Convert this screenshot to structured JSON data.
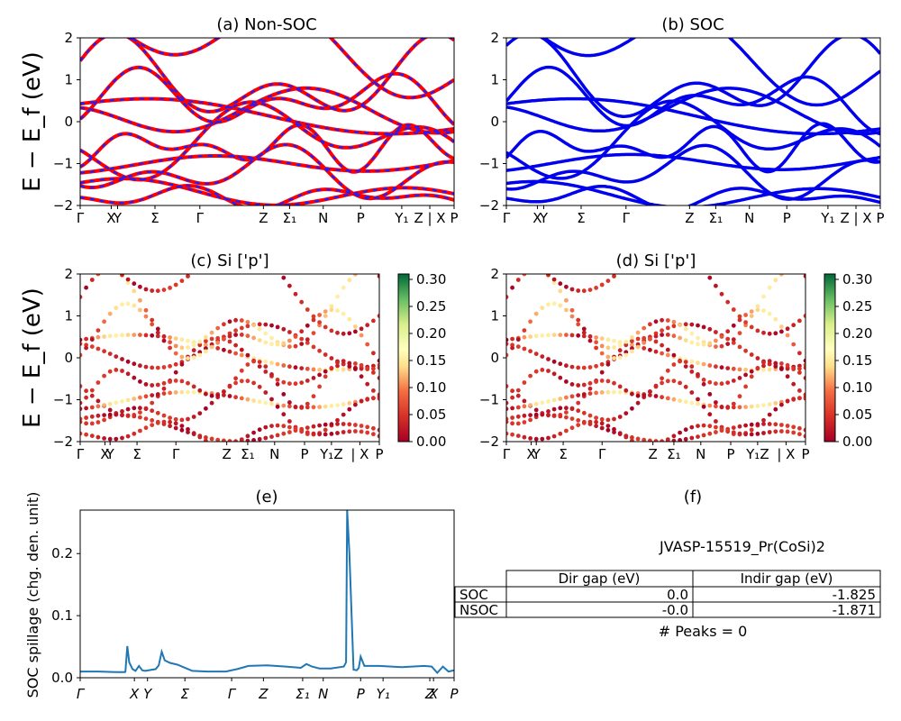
{
  "chart_data": [
    {
      "type": "line",
      "title": "(a) Non-SOC",
      "ylabel": "E − E_f (eV)",
      "ylim": [
        -2,
        2
      ],
      "yticks": [
        "−2",
        "−1",
        "0",
        "1",
        "2"
      ],
      "xtick_labels": [
        "Γ",
        "X",
        "Y",
        "Σ",
        "Γ",
        "Z",
        "Σ₁",
        "N",
        "P",
        "Y₁",
        "Z | X",
        "P"
      ],
      "xlim": [
        0,
        10
      ],
      "colors": {
        "line": "#ff0000",
        "dash": "#1f1fff"
      },
      "grid": false,
      "series_note_colors": [
        "red",
        "blue"
      ]
    },
    {
      "type": "line",
      "title": "(b) SOC",
      "ylim": [
        -2,
        2
      ],
      "yticks": [
        "−2",
        "−1",
        "0",
        "1",
        "2"
      ],
      "xtick_labels": [
        "Γ",
        "X",
        "Y",
        "Σ",
        "Γ",
        "Z",
        "Σ₁",
        "N",
        "P",
        "Y₁",
        "Z | X",
        "P"
      ],
      "colors": {
        "line": "#0000ee"
      },
      "grid": false
    },
    {
      "type": "scatter",
      "title": "(c)  Si ['p']",
      "ylabel": "E − E_f (eV)",
      "ylim": [
        -2,
        2
      ],
      "yticks": [
        "−2",
        "−1",
        "0",
        "1",
        "2"
      ],
      "xtick_labels": [
        "Γ",
        "X",
        "Y",
        "Σ",
        "Γ",
        "Z",
        "Σ₁",
        "N",
        "P",
        "Y₁Z",
        "| X",
        "P"
      ],
      "colorbar": {
        "min": 0.0,
        "max": 0.31,
        "ticks": [
          "0.00",
          "0.05",
          "0.10",
          "0.15",
          "0.20",
          "0.25",
          "0.30"
        ],
        "colormap": "RdYlGn"
      }
    },
    {
      "type": "scatter",
      "title": "(d) Si ['p']",
      "ylim": [
        -2,
        2
      ],
      "yticks": [
        "−2",
        "−1",
        "0",
        "1",
        "2"
      ],
      "xtick_labels": [
        "Γ",
        "X",
        "Y",
        "Σ",
        "Γ",
        "Z",
        "Σ₁",
        "N",
        "P",
        "Y₁Z",
        "| X",
        "P"
      ],
      "colorbar": {
        "min": 0.0,
        "max": 0.31,
        "ticks": [
          "0.00",
          "0.05",
          "0.10",
          "0.15",
          "0.20",
          "0.25",
          "0.30"
        ],
        "colormap": "RdYlGn"
      }
    },
    {
      "type": "line",
      "title": "(e)",
      "ylabel": "SOC spillage (chg. den. unit)",
      "ylim": [
        0,
        0.27
      ],
      "yticks": [
        "0.0",
        "0.1",
        "0.2"
      ],
      "xtick_labels": [
        "Γ",
        "X",
        "Y",
        "Σ",
        "Γ",
        "Z",
        "Σ₁",
        "N",
        "P",
        "Y₁",
        "Z",
        "X",
        "P"
      ],
      "series": [
        {
          "x": [
            0,
            0.5,
            1.0,
            1.2,
            1.21,
            1.26,
            1.31,
            1.4,
            1.48,
            1.57,
            1.66,
            1.74,
            2.02,
            2.1,
            2.18,
            2.26,
            2.4,
            2.6,
            3.0,
            3.4,
            3.9,
            4.2,
            4.5,
            5.0,
            5.5,
            5.9,
            6.05,
            6.2,
            6.4,
            6.7,
            7.05,
            7.11,
            7.14,
            7.2,
            7.31,
            7.4,
            7.45,
            7.5,
            7.6,
            8.0,
            8.6,
            9.2,
            9.4,
            9.55,
            9.7,
            9.85,
            10.0
          ],
          "y": [
            0.01,
            0.01,
            0.009,
            0.009,
            0.01,
            0.051,
            0.025,
            0.014,
            0.011,
            0.019,
            0.012,
            0.011,
            0.014,
            0.02,
            0.042,
            0.028,
            0.024,
            0.021,
            0.011,
            0.01,
            0.01,
            0.014,
            0.019,
            0.02,
            0.018,
            0.016,
            0.022,
            0.018,
            0.015,
            0.015,
            0.018,
            0.025,
            0.27,
            0.2,
            0.013,
            0.012,
            0.016,
            0.034,
            0.019,
            0.019,
            0.017,
            0.019,
            0.018,
            0.008,
            0.018,
            0.01,
            0.012
          ]
        }
      ],
      "colors": {
        "line": "#1f77b4"
      }
    }
  ],
  "panel_f": {
    "title": "(f)",
    "material": "JVASP-15519_Pr(CoSi)2",
    "table": {
      "headers": [
        "",
        "Dir gap (eV)",
        "Indir gap (eV)"
      ],
      "rows": [
        [
          "SOC",
          "0.0",
          "-1.825"
        ],
        [
          "NSOC",
          "-0.0",
          "-1.871"
        ]
      ]
    },
    "peaks": "# Peaks = 0"
  }
}
